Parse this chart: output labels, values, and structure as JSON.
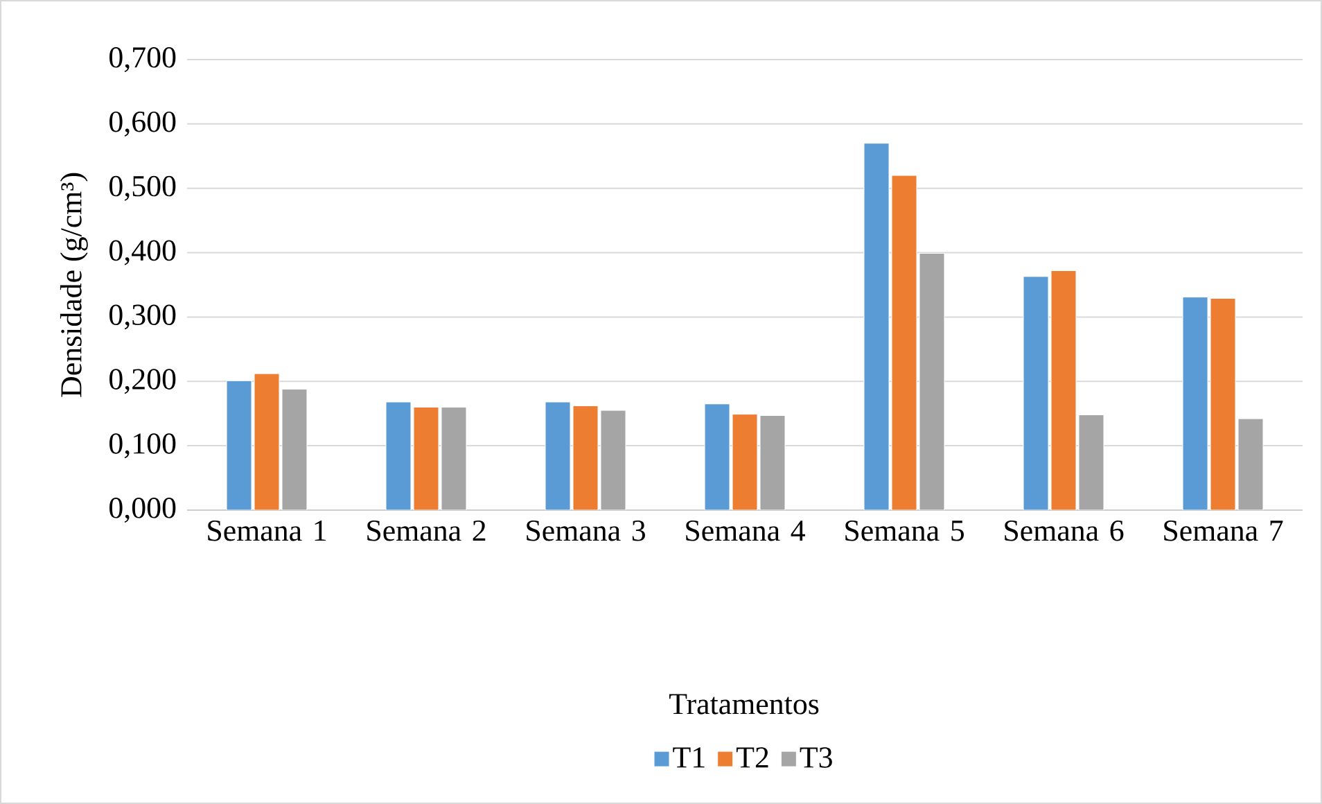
{
  "chart_data": {
    "type": "bar",
    "legend_title": "Tratamentos",
    "ylabel": "Densidade (g/cm³)",
    "categories": [
      "Semana 1",
      "Semana 2",
      "Semana 3",
      "Semana 4",
      "Semana 5",
      "Semana 6",
      "Semana 7"
    ],
    "series": [
      {
        "name": "T1",
        "color": "#5b9bd5",
        "values": [
          0.201,
          0.168,
          0.168,
          0.165,
          0.57,
          0.363,
          0.331
        ]
      },
      {
        "name": "T2",
        "color": "#ed7d31",
        "values": [
          0.212,
          0.16,
          0.162,
          0.149,
          0.52,
          0.372,
          0.329
        ]
      },
      {
        "name": "T3",
        "color": "#a5a5a5",
        "values": [
          0.188,
          0.16,
          0.155,
          0.147,
          0.399,
          0.148,
          0.142
        ]
      }
    ],
    "ylim": [
      0,
      0.7
    ],
    "yticks": [
      {
        "value": 0,
        "label": "0,000"
      },
      {
        "value": 0.1,
        "label": "0,100"
      },
      {
        "value": 0.2,
        "label": "0,200"
      },
      {
        "value": 0.3,
        "label": "0,300"
      },
      {
        "value": 0.4,
        "label": "0,400"
      },
      {
        "value": 0.5,
        "label": "0,500"
      },
      {
        "value": 0.6,
        "label": "0,600"
      },
      {
        "value": 0.7,
        "label": "0,700"
      }
    ],
    "grid": "y",
    "legend": "bottom"
  }
}
